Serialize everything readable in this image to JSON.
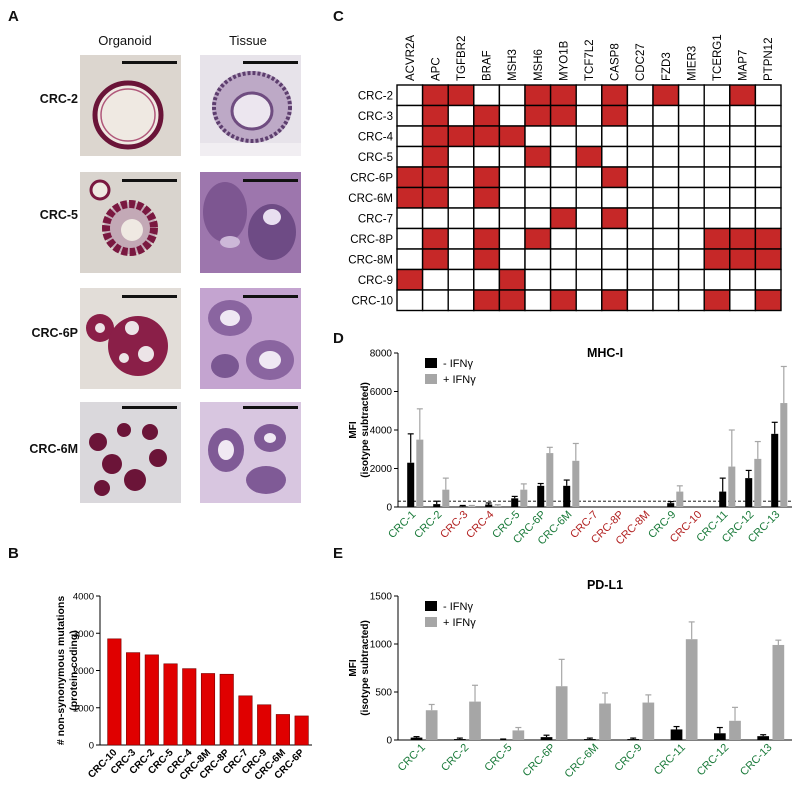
{
  "panels": {
    "a": "A",
    "b": "B",
    "c": "C",
    "d": "D",
    "e": "E"
  },
  "panel_a": {
    "col_headers": [
      "Organoid",
      "Tissue"
    ],
    "rows": [
      "CRC-2",
      "CRC-5",
      "CRC-6P",
      "CRC-6M"
    ]
  },
  "chart_data": [
    {
      "id": "B",
      "type": "bar",
      "ylabel": "# non-synonymous mutations\n(protein-coding)",
      "ylim": [
        0,
        4000
      ],
      "yticks": [
        0,
        1000,
        2000,
        3000,
        4000
      ],
      "categories": [
        "CRC-10",
        "CRC-3",
        "CRC-2",
        "CRC-5",
        "CRC-4",
        "CRC-8M",
        "CRC-8P",
        "CRC-7",
        "CRC-9",
        "CRC-6M",
        "CRC-6P"
      ],
      "values": [
        2850,
        2480,
        2420,
        2180,
        2050,
        1920,
        1900,
        1320,
        1080,
        820,
        780
      ],
      "color": "#e00000"
    },
    {
      "id": "C",
      "type": "heatmap",
      "columns": [
        "ACVR2A",
        "APC",
        "TGFBR2",
        "BRAF",
        "MSH3",
        "MSH6",
        "MYO1B",
        "TCF7L2",
        "CASP8",
        "CDC27",
        "FZD3",
        "MIER3",
        "TCERG1",
        "MAP7",
        "PTPN12"
      ],
      "rows": [
        "CRC-2",
        "CRC-3",
        "CRC-4",
        "CRC-5",
        "CRC-6P",
        "CRC-6M",
        "CRC-7",
        "CRC-8P",
        "CRC-8M",
        "CRC-9",
        "CRC-10"
      ],
      "matrix": [
        [
          0,
          1,
          1,
          0,
          0,
          1,
          1,
          0,
          1,
          0,
          1,
          0,
          0,
          1,
          0
        ],
        [
          0,
          1,
          0,
          1,
          0,
          1,
          1,
          0,
          1,
          0,
          0,
          0,
          0,
          0,
          0
        ],
        [
          0,
          1,
          1,
          1,
          1,
          0,
          0,
          0,
          0,
          0,
          0,
          0,
          0,
          0,
          0
        ],
        [
          0,
          1,
          0,
          0,
          0,
          1,
          0,
          1,
          0,
          0,
          0,
          0,
          0,
          0,
          0
        ],
        [
          1,
          1,
          0,
          1,
          0,
          0,
          0,
          0,
          1,
          0,
          0,
          0,
          0,
          0,
          0
        ],
        [
          1,
          1,
          0,
          1,
          0,
          0,
          0,
          0,
          0,
          0,
          0,
          0,
          0,
          0,
          0
        ],
        [
          0,
          0,
          0,
          0,
          0,
          0,
          1,
          0,
          1,
          0,
          0,
          0,
          0,
          0,
          0
        ],
        [
          0,
          1,
          0,
          1,
          0,
          1,
          0,
          0,
          0,
          0,
          0,
          0,
          1,
          1,
          1
        ],
        [
          0,
          1,
          0,
          1,
          0,
          0,
          0,
          0,
          0,
          0,
          0,
          0,
          1,
          1,
          1
        ],
        [
          1,
          0,
          0,
          0,
          1,
          0,
          0,
          0,
          0,
          0,
          0,
          0,
          0,
          0,
          0
        ],
        [
          0,
          0,
          0,
          1,
          1,
          0,
          1,
          0,
          1,
          0,
          0,
          0,
          1,
          0,
          1
        ]
      ],
      "on_color": "#c62828"
    },
    {
      "id": "D",
      "type": "bar",
      "title": "MHC-I",
      "ylabel_1": "MFI",
      "ylabel_2": "(isotype subtracted)",
      "ylim": [
        0,
        8000
      ],
      "yticks": [
        0,
        2000,
        4000,
        6000,
        8000
      ],
      "threshold": 300,
      "categories": [
        "CRC-1",
        "CRC-2",
        "CRC-3",
        "CRC-4",
        "CRC-5",
        "CRC-6P",
        "CRC-6M",
        "CRC-7",
        "CRC-8P",
        "CRC-8M",
        "CRC-9",
        "CRC-10",
        "CRC-11",
        "CRC-12",
        "CRC-13"
      ],
      "category_colors": [
        "#1a7a3a",
        "#1a7a3a",
        "#b22222",
        "#b22222",
        "#1a7a3a",
        "#1a7a3a",
        "#1a7a3a",
        "#b22222",
        "#b22222",
        "#b22222",
        "#1a7a3a",
        "#b22222",
        "#1a7a3a",
        "#1a7a3a",
        "#1a7a3a"
      ],
      "legend": [
        "- IFNγ",
        "+ IFNγ"
      ],
      "series": [
        {
          "name": "- IFNγ",
          "color": "#000000",
          "values": [
            2300,
            150,
            40,
            130,
            450,
            1100,
            1100,
            0,
            0,
            0,
            200,
            0,
            800,
            1500,
            3800
          ],
          "errors": [
            1500,
            150,
            40,
            80,
            100,
            120,
            300,
            0,
            0,
            0,
            80,
            0,
            700,
            400,
            600
          ]
        },
        {
          "name": "+ IFNγ",
          "color": "#a6a6a6",
          "values": [
            3500,
            900,
            40,
            60,
            900,
            2800,
            2400,
            0,
            0,
            0,
            800,
            0,
            2100,
            2500,
            5400
          ],
          "errors": [
            1600,
            600,
            40,
            60,
            300,
            300,
            900,
            0,
            0,
            0,
            300,
            0,
            1900,
            900,
            1900
          ]
        }
      ]
    },
    {
      "id": "E",
      "type": "bar",
      "title": "PD-L1",
      "ylabel_1": "MFI",
      "ylabel_2": "(isotype subtracted)",
      "ylim": [
        0,
        1500
      ],
      "yticks": [
        0,
        500,
        1000,
        1500
      ],
      "categories": [
        "CRC-1",
        "CRC-2",
        "CRC-5",
        "CRC-6P",
        "CRC-6M",
        "CRC-9",
        "CRC-11",
        "CRC-12",
        "CRC-13"
      ],
      "category_colors": [
        "#1a7a3a",
        "#1a7a3a",
        "#1a7a3a",
        "#1a7a3a",
        "#1a7a3a",
        "#1a7a3a",
        "#1a7a3a",
        "#1a7a3a",
        "#1a7a3a"
      ],
      "legend": [
        "- IFNγ",
        "+ IFNγ"
      ],
      "series": [
        {
          "name": "- IFNγ",
          "color": "#000000",
          "values": [
            25,
            10,
            5,
            30,
            10,
            10,
            110,
            70,
            40
          ],
          "errors": [
            10,
            10,
            5,
            20,
            10,
            10,
            30,
            60,
            15
          ]
        },
        {
          "name": "+ IFNγ",
          "color": "#a6a6a6",
          "values": [
            310,
            400,
            100,
            560,
            380,
            390,
            1050,
            200,
            990
          ],
          "errors": [
            60,
            170,
            30,
            280,
            110,
            80,
            180,
            140,
            50
          ]
        }
      ]
    }
  ]
}
